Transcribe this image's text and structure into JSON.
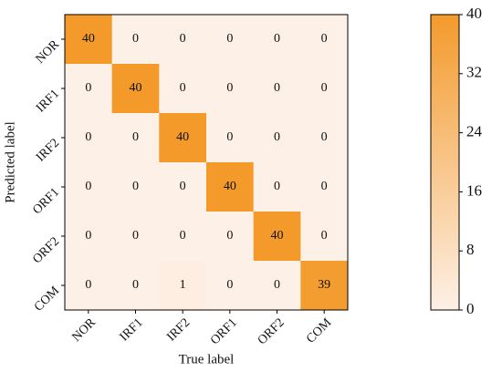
{
  "chart_data": {
    "type": "heatmap",
    "xlabel": "True label",
    "ylabel": "Predicted label",
    "x_categories": [
      "NOR",
      "IRF1",
      "IRF2",
      "ORF1",
      "ORF2",
      "COM"
    ],
    "y_categories": [
      "NOR",
      "IRF1",
      "IRF2",
      "ORF1",
      "ORF2",
      "COM"
    ],
    "values": [
      [
        40,
        0,
        0,
        0,
        0,
        0
      ],
      [
        0,
        40,
        0,
        0,
        0,
        0
      ],
      [
        0,
        0,
        40,
        0,
        0,
        0
      ],
      [
        0,
        0,
        0,
        40,
        0,
        0
      ],
      [
        0,
        0,
        0,
        0,
        40,
        0
      ],
      [
        0,
        0,
        1,
        0,
        0,
        39
      ]
    ],
    "zlim": [
      0,
      40
    ],
    "zticks": [
      0,
      8,
      16,
      24,
      32,
      40
    ],
    "color_low": "#fdf0e6",
    "color_high": "#f39a2b"
  }
}
